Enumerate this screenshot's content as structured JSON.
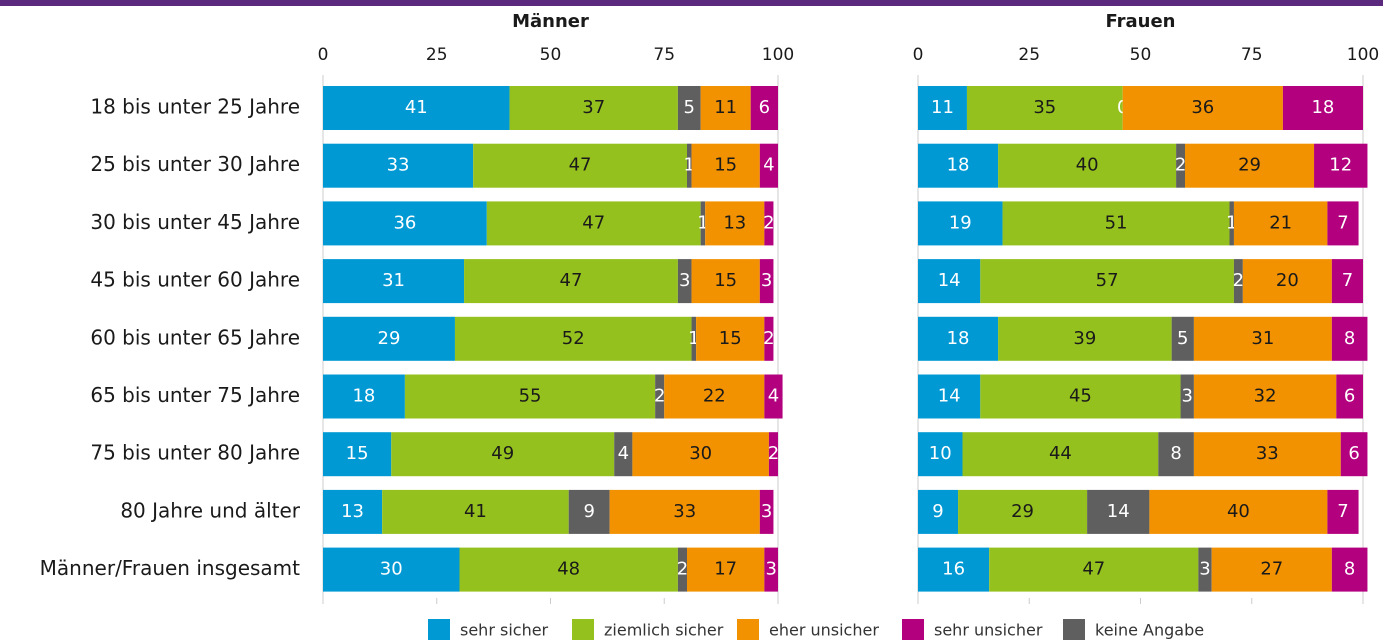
{
  "chart_data": [
    {
      "type": "bar",
      "orientation": "horizontal",
      "stacked": true,
      "title": "Männer",
      "categories": [
        "18 bis unter 25 Jahre",
        "25 bis unter 30 Jahre",
        "30 bis unter 45 Jahre",
        "45 bis unter 60 Jahre",
        "60 bis unter 65 Jahre",
        "65 bis unter 75 Jahre",
        "75 bis unter 80 Jahre",
        "80 Jahre und älter",
        "Männer/Frauen insgesamt"
      ],
      "xlim": [
        0,
        100
      ],
      "xticks": [
        0,
        25,
        50,
        75,
        100
      ],
      "series": [
        {
          "name": "sehr sicher",
          "color": "#0099d4",
          "values": [
            41,
            33,
            36,
            31,
            29,
            18,
            15,
            13,
            30
          ]
        },
        {
          "name": "ziemlich sicher",
          "color": "#95c11f",
          "values": [
            37,
            47,
            47,
            47,
            52,
            55,
            49,
            41,
            48
          ]
        },
        {
          "name": "keine Angabe",
          "color": "#5f5f5f",
          "values": [
            5,
            1,
            1,
            3,
            1,
            2,
            4,
            9,
            2
          ]
        },
        {
          "name": "eher unsicher",
          "color": "#f39200",
          "values": [
            11,
            15,
            13,
            15,
            15,
            22,
            30,
            33,
            17
          ]
        },
        {
          "name": "sehr unsicher",
          "color": "#b2007e",
          "values": [
            6,
            4,
            2,
            3,
            2,
            4,
            2,
            3,
            3
          ]
        }
      ]
    },
    {
      "type": "bar",
      "orientation": "horizontal",
      "stacked": true,
      "title": "Frauen",
      "xlim": [
        0,
        100
      ],
      "xticks": [
        0,
        25,
        50,
        75,
        100
      ],
      "series": [
        {
          "color": "#0099d4",
          "values": [
            11,
            18,
            19,
            14,
            18,
            14,
            10,
            9,
            16
          ]
        },
        {
          "color": "#95c11f",
          "values": [
            35,
            40,
            51,
            57,
            39,
            45,
            44,
            29,
            47
          ]
        },
        {
          "color": "#5f5f5f",
          "values": [
            0,
            2,
            1,
            2,
            5,
            3,
            8,
            14,
            3
          ]
        },
        {
          "color": "#f39200",
          "values": [
            36,
            29,
            21,
            20,
            31,
            32,
            33,
            40,
            27
          ]
        },
        {
          "color": "#b2007e",
          "values": [
            18,
            12,
            7,
            7,
            8,
            6,
            6,
            7,
            8
          ]
        }
      ]
    }
  ]
}
